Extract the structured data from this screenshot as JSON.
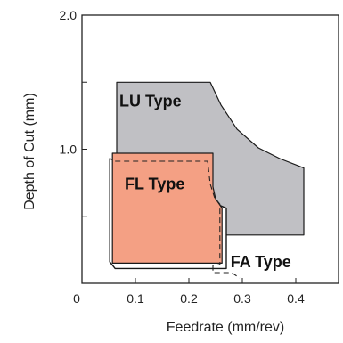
{
  "chart_data": {
    "type": "area",
    "xlabel": "Feedrate (mm/rev)",
    "ylabel": "Depth of Cut (mm)",
    "xlim": [
      0,
      0.48
    ],
    "ylim": [
      0,
      2.0
    ],
    "x_ticks": [
      {
        "value": 0,
        "label": "0"
      },
      {
        "value": 0.1,
        "label": "0.1"
      },
      {
        "value": 0.2,
        "label": "0.2"
      },
      {
        "value": 0.3,
        "label": "0.3"
      },
      {
        "value": 0.4,
        "label": "0.4"
      }
    ],
    "y_ticks": [
      {
        "value": 0.5,
        "label": ""
      },
      {
        "value": 1.0,
        "label": "1.0"
      },
      {
        "value": 1.5,
        "label": ""
      },
      {
        "value": 2.0,
        "label": "2.0"
      }
    ],
    "regions": [
      {
        "name": "LU Type",
        "color": "#c0c0c4",
        "label_at": [
          0.07,
          1.32
        ],
        "points": [
          [
            0.065,
            1.5
          ],
          [
            0.24,
            1.5
          ],
          [
            0.26,
            1.33
          ],
          [
            0.29,
            1.15
          ],
          [
            0.33,
            1.01
          ],
          [
            0.37,
            0.93
          ],
          [
            0.415,
            0.86
          ],
          [
            0.415,
            0.36
          ],
          [
            0.255,
            0.36
          ],
          [
            0.255,
            0.23
          ],
          [
            0.065,
            0.23
          ]
        ]
      },
      {
        "name": "FL Type",
        "color": "#f4a084",
        "label_at": [
          0.08,
          0.7
        ],
        "points": [
          [
            0.057,
            0.97
          ],
          [
            0.245,
            0.97
          ],
          [
            0.245,
            0.72
          ],
          [
            0.25,
            0.63
          ],
          [
            0.262,
            0.56
          ],
          [
            0.262,
            0.15
          ],
          [
            0.057,
            0.15
          ]
        ]
      },
      {
        "name": "FA Type",
        "color": "#ffffff",
        "label_at": [
          0.278,
          0.12
        ],
        "points": [
          [
            0.052,
            0.93
          ],
          [
            0.052,
            0.16
          ],
          [
            0.062,
            0.11
          ],
          [
            0.27,
            0.11
          ],
          [
            0.27,
            0.56
          ]
        ]
      }
    ],
    "dashed_line": [
      [
        0.062,
        0.91
      ],
      [
        0.235,
        0.91
      ],
      [
        0.24,
        0.74
      ],
      [
        0.248,
        0.64
      ],
      [
        0.258,
        0.59
      ],
      [
        0.258,
        0.14
      ],
      [
        0.245,
        0.13
      ],
      [
        0.245,
        0.08
      ],
      [
        0.28,
        0.08
      ],
      [
        0.295,
        0.04
      ]
    ]
  },
  "colors": {
    "axis": "#222222",
    "edge": "#1a1a1a"
  }
}
